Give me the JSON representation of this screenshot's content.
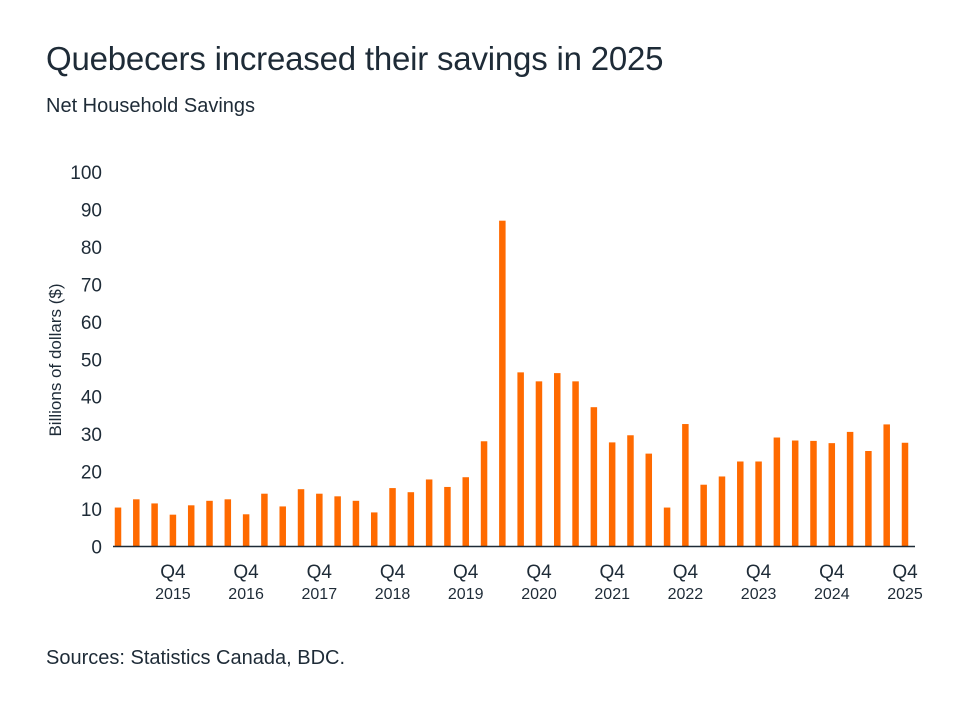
{
  "title": "Quebecers increased their savings in 2025",
  "subtitle": "Net Household Savings",
  "source": "Sources: Statistics Canada, BDC.",
  "colors": {
    "bar": "#ff6a00",
    "text": "#1e2b37",
    "axis": "#1e2b37"
  },
  "chart_data": {
    "type": "bar",
    "title": "Quebecers increased their savings in 2025",
    "subtitle": "Net Household Savings",
    "xlabel": "",
    "ylabel": "Billions of dollars ($)",
    "ylim": [
      0,
      100
    ],
    "yticks": [
      0,
      10,
      20,
      30,
      40,
      50,
      60,
      70,
      80,
      90,
      100
    ],
    "grid": false,
    "legend": "none",
    "categories": [
      "Q1 2015",
      "Q2 2015",
      "Q3 2015",
      "Q4 2015",
      "Q1 2016",
      "Q2 2016",
      "Q3 2016",
      "Q4 2016",
      "Q1 2017",
      "Q2 2017",
      "Q3 2017",
      "Q4 2017",
      "Q1 2018",
      "Q2 2018",
      "Q3 2018",
      "Q4 2018",
      "Q1 2019",
      "Q2 2019",
      "Q3 2019",
      "Q4 2019",
      "Q1 2020",
      "Q2 2020",
      "Q3 2020",
      "Q4 2020",
      "Q1 2021",
      "Q2 2021",
      "Q3 2021",
      "Q4 2021",
      "Q1 2022",
      "Q2 2022",
      "Q3 2022",
      "Q4 2022",
      "Q1 2023",
      "Q2 2023",
      "Q3 2023",
      "Q4 2023",
      "Q1 2024",
      "Q2 2024",
      "Q3 2024",
      "Q4 2024",
      "Q1 2025",
      "Q2 2025",
      "Q3 2025",
      "Q4 2025"
    ],
    "values": [
      10.4,
      12.6,
      11.5,
      8.5,
      11.0,
      12.2,
      12.6,
      8.6,
      14.1,
      10.7,
      15.3,
      14.1,
      13.4,
      12.2,
      9.1,
      15.6,
      14.5,
      17.9,
      15.9,
      18.5,
      28.1,
      87.0,
      46.5,
      44.1,
      46.3,
      44.1,
      37.2,
      27.8,
      29.7,
      24.8,
      10.4,
      32.7,
      16.5,
      18.7,
      22.7,
      22.7,
      29.1,
      28.3,
      28.2,
      27.6,
      30.6,
      25.5,
      32.6,
      27.7
    ],
    "x_tick_labels": [
      {
        "index": 3,
        "line1": "Q4",
        "line2": "2015"
      },
      {
        "index": 7,
        "line1": "Q4",
        "line2": "2016"
      },
      {
        "index": 11,
        "line1": "Q4",
        "line2": "2017"
      },
      {
        "index": 15,
        "line1": "Q4",
        "line2": "2018"
      },
      {
        "index": 19,
        "line1": "Q4",
        "line2": "2019"
      },
      {
        "index": 23,
        "line1": "Q4",
        "line2": "2020"
      },
      {
        "index": 27,
        "line1": "Q4",
        "line2": "2021"
      },
      {
        "index": 31,
        "line1": "Q4",
        "line2": "2022"
      },
      {
        "index": 35,
        "line1": "Q4",
        "line2": "2023"
      },
      {
        "index": 39,
        "line1": "Q4",
        "line2": "2024"
      },
      {
        "index": 43,
        "line1": "Q4",
        "line2": "2025"
      }
    ]
  }
}
